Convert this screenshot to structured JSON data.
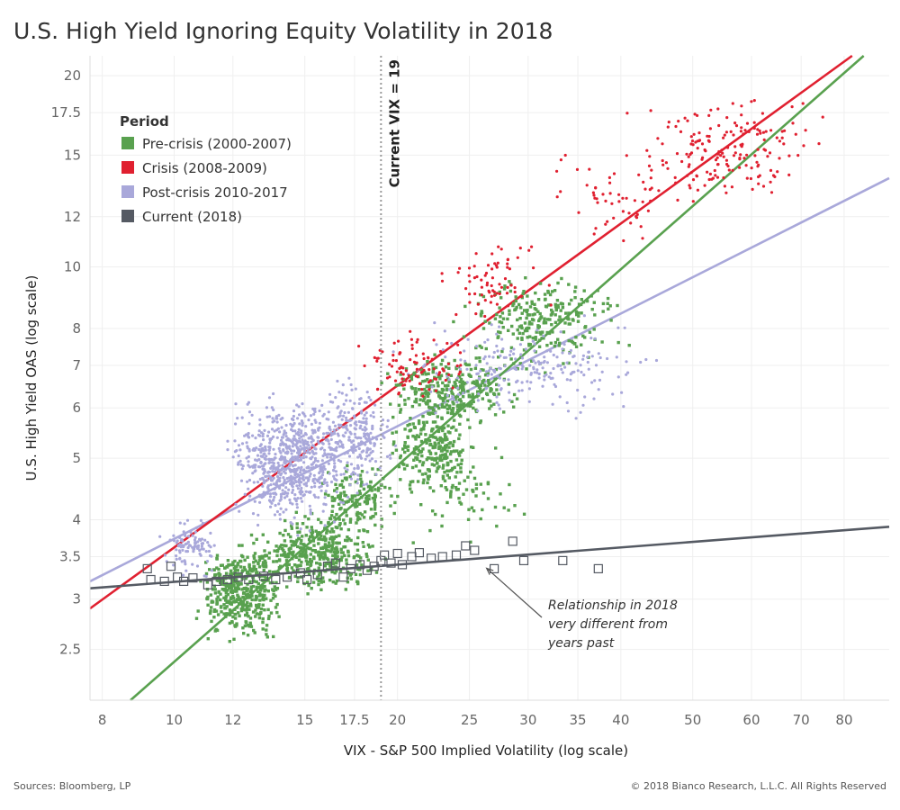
{
  "header": {
    "title": "U.S. High Yield Ignoring Equity Volatility in 2018"
  },
  "footer": {
    "source": "Sources: Bloomberg, LP",
    "copyright": "© 2018 Bianco Research, L.L.C. All Rights Reserved"
  },
  "chart_data": {
    "type": "scatter",
    "title": "U.S. High Yield Ignoring Equity Volatility in 2018",
    "xlabel": "VIX - S&P 500 Implied Volatility (log scale)",
    "ylabel": "U.S. High Yield OAS (log scale)",
    "x_scale": "log",
    "y_scale": "log",
    "xlim": [
      7.7,
      92
    ],
    "ylim": [
      2.08,
      21.5
    ],
    "x_ticks": [
      8,
      10,
      12,
      15,
      17.5,
      20,
      25,
      30,
      35,
      40,
      50,
      60,
      70,
      80
    ],
    "x_tick_labels": [
      "8",
      "10",
      "12",
      "15",
      "17.5",
      "20",
      "25",
      "30",
      "35",
      "40",
      "50",
      "60",
      "70",
      "80"
    ],
    "y_ticks": [
      2.5,
      3,
      3.5,
      4,
      5,
      6,
      7,
      8,
      10,
      12,
      15,
      17.5,
      20
    ],
    "y_tick_labels": [
      "2.5",
      "3",
      "3.5",
      "4",
      "5",
      "6",
      "7",
      "8",
      "10",
      "12",
      "15",
      "17.5",
      "20"
    ],
    "grid": true,
    "legend": {
      "title": "Period",
      "position": "top-left",
      "entries": [
        {
          "label": "Pre-crisis (2000-2007)",
          "color": "#59a14f"
        },
        {
          "label": "Crisis (2008-2009)",
          "color": "#e02030"
        },
        {
          "label": "Post-crisis 2010-2017",
          "color": "#a9a8da"
        },
        {
          "label": "Current (2018)",
          "color": "#555a63"
        }
      ]
    },
    "reference_line": {
      "x": 19,
      "label": "Current VIX = 19",
      "color": "#999999"
    },
    "annotation": {
      "lines": [
        "Relationship in 2018",
        "very different from",
        "years past"
      ],
      "arrow_to": {
        "x": 25.5,
        "y": 3.4
      }
    },
    "series": [
      {
        "name": "Pre-crisis (2000-2007)",
        "color": "#59a14f",
        "marker": "square",
        "clusters": [
          {
            "x_range": [
              10.5,
              14.5
            ],
            "y_range": [
              2.45,
              3.9
            ],
            "count": 420
          },
          {
            "x_range": [
              12.5,
              19.5
            ],
            "y_range": [
              3.0,
              4.2
            ],
            "count": 380
          },
          {
            "x_range": [
              15.0,
              20.5
            ],
            "y_range": [
              3.7,
              5.0
            ],
            "count": 140
          },
          {
            "x_range": [
              19.0,
              26.0
            ],
            "y_range": [
              4.2,
              6.3
            ],
            "count": 240
          },
          {
            "x_range": [
              18.5,
              30.0
            ],
            "y_range": [
              5.4,
              7.5
            ],
            "count": 300
          },
          {
            "x_range": [
              23.0,
              42.0
            ],
            "y_range": [
              6.6,
              10.3
            ],
            "count": 260
          },
          {
            "x_range": [
              20.0,
              31.0
            ],
            "y_range": [
              3.5,
              5.6
            ],
            "count": 60
          }
        ],
        "trendline": [
          {
            "x": 8.2,
            "y": 1.95
          },
          {
            "x": 85,
            "y": 21.5
          }
        ]
      },
      {
        "name": "Crisis (2008-2009)",
        "color": "#e02030",
        "marker": "dot",
        "clusters": [
          {
            "x_range": [
              17.0,
              26.0
            ],
            "y_range": [
              5.9,
              8.2
            ],
            "count": 90
          },
          {
            "x_range": [
              22.0,
              33.0
            ],
            "y_range": [
              7.8,
              11.5
            ],
            "count": 70
          },
          {
            "x_range": [
              31.0,
              50.0
            ],
            "y_range": [
              10.5,
              16.0
            ],
            "count": 55
          },
          {
            "x_range": [
              40.0,
              80.0
            ],
            "y_range": [
              12.0,
              19.3
            ],
            "count": 180
          }
        ],
        "trendline": [
          {
            "x": 7.7,
            "y": 2.9
          },
          {
            "x": 82,
            "y": 21.5
          }
        ]
      },
      {
        "name": "Post-crisis 2010-2017",
        "color": "#a9a8da",
        "marker": "dot",
        "clusters": [
          {
            "x_range": [
              9.4,
              12.0
            ],
            "y_range": [
              3.2,
              4.1
            ],
            "count": 100
          },
          {
            "x_range": [
              11.5,
              17.5
            ],
            "y_range": [
              3.7,
              6.6
            ],
            "count": 700
          },
          {
            "x_range": [
              14.5,
              20.5
            ],
            "y_range": [
              4.2,
              7.0
            ],
            "count": 260
          },
          {
            "x_range": [
              19.0,
              48.0
            ],
            "y_range": [
              5.5,
              8.6
            ],
            "count": 220
          }
        ],
        "trendline": [
          {
            "x": 7.7,
            "y": 3.2
          },
          {
            "x": 92,
            "y": 13.8
          }
        ]
      },
      {
        "name": "Current (2018)",
        "color": "#555a63",
        "marker": "open-square",
        "points": [
          [
            9.2,
            3.35
          ],
          [
            9.3,
            3.22
          ],
          [
            9.7,
            3.2
          ],
          [
            9.9,
            3.38
          ],
          [
            10.1,
            3.25
          ],
          [
            10.3,
            3.2
          ],
          [
            10.6,
            3.24
          ],
          [
            11.1,
            3.16
          ],
          [
            11.4,
            3.2
          ],
          [
            11.8,
            3.22
          ],
          [
            12.2,
            3.25
          ],
          [
            12.6,
            3.22
          ],
          [
            13.2,
            3.26
          ],
          [
            13.7,
            3.22
          ],
          [
            14.2,
            3.25
          ],
          [
            14.8,
            3.3
          ],
          [
            15.1,
            3.22
          ],
          [
            15.6,
            3.28
          ],
          [
            16.1,
            3.38
          ],
          [
            16.5,
            3.42
          ],
          [
            16.9,
            3.25
          ],
          [
            17.3,
            3.35
          ],
          [
            17.8,
            3.4
          ],
          [
            18.2,
            3.33
          ],
          [
            18.6,
            3.38
          ],
          [
            19.0,
            3.45
          ],
          [
            19.2,
            3.52
          ],
          [
            19.6,
            3.42
          ],
          [
            20.0,
            3.54
          ],
          [
            20.3,
            3.4
          ],
          [
            20.9,
            3.5
          ],
          [
            21.4,
            3.55
          ],
          [
            22.2,
            3.48
          ],
          [
            23.0,
            3.5
          ],
          [
            24.0,
            3.52
          ],
          [
            24.7,
            3.64
          ],
          [
            25.4,
            3.58
          ],
          [
            27.0,
            3.35
          ],
          [
            28.6,
            3.7
          ],
          [
            29.6,
            3.45
          ],
          [
            33.4,
            3.45
          ],
          [
            37.3,
            3.35
          ]
        ],
        "trendline": [
          {
            "x": 7.7,
            "y": 3.12
          },
          {
            "x": 92,
            "y": 3.9
          }
        ]
      }
    ]
  }
}
